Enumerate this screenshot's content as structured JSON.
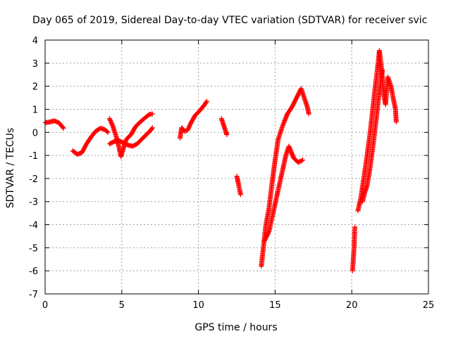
{
  "chart_data": {
    "type": "scatter",
    "title": "Day 065 of 2019, Sidereal Day-to-day VTEC variation (SDTVAR) for receiver svic",
    "xlabel": "GPS time / hours",
    "ylabel": "SDTVAR / TECUs",
    "xlim": [
      0,
      25
    ],
    "ylim": [
      -7,
      4
    ],
    "xticks": [
      0,
      5,
      10,
      15,
      20,
      25
    ],
    "yticks": [
      4,
      3,
      2,
      1,
      0,
      -1,
      -2,
      -3,
      -4,
      -5,
      -6,
      -7
    ],
    "grid": true,
    "marker": "+",
    "color": "#ff0000",
    "series": [
      {
        "name": "SDTVAR",
        "segments": [
          [
            [
              0.0,
              0.42
            ],
            [
              0.3,
              0.45
            ],
            [
              0.6,
              0.5
            ],
            [
              0.9,
              0.42
            ],
            [
              1.2,
              0.18
            ]
          ],
          [
            [
              1.8,
              -0.8
            ],
            [
              2.1,
              -0.95
            ],
            [
              2.4,
              -0.88
            ],
            [
              2.7,
              -0.5
            ],
            [
              3.0,
              -0.2
            ],
            [
              3.3,
              0.05
            ],
            [
              3.6,
              0.18
            ],
            [
              3.9,
              0.12
            ],
            [
              4.1,
              0.0
            ]
          ],
          [
            [
              4.2,
              0.6
            ],
            [
              4.4,
              0.3
            ],
            [
              4.6,
              -0.1
            ],
            [
              4.8,
              -0.6
            ],
            [
              4.95,
              -1.05
            ],
            [
              5.1,
              -0.7
            ],
            [
              5.3,
              -0.3
            ],
            [
              5.6,
              -0.1
            ],
            [
              5.9,
              0.25
            ],
            [
              6.2,
              0.45
            ],
            [
              6.5,
              0.62
            ],
            [
              6.8,
              0.78
            ],
            [
              7.0,
              0.8
            ]
          ],
          [
            [
              4.2,
              -0.5
            ],
            [
              4.5,
              -0.4
            ],
            [
              4.8,
              -0.35
            ],
            [
              5.1,
              -0.45
            ],
            [
              5.4,
              -0.55
            ],
            [
              5.7,
              -0.6
            ],
            [
              6.0,
              -0.5
            ],
            [
              6.3,
              -0.3
            ],
            [
              6.6,
              -0.1
            ],
            [
              6.9,
              0.1
            ],
            [
              7.0,
              0.2
            ]
          ],
          [
            [
              8.8,
              -0.25
            ],
            [
              8.9,
              0.2
            ],
            [
              9.1,
              0.05
            ],
            [
              9.3,
              0.1
            ],
            [
              9.5,
              0.4
            ],
            [
              9.8,
              0.75
            ],
            [
              10.1,
              0.95
            ],
            [
              10.4,
              1.2
            ],
            [
              10.55,
              1.35
            ]
          ],
          [
            [
              11.5,
              0.6
            ],
            [
              11.65,
              0.3
            ],
            [
              11.8,
              0.0
            ],
            [
              11.85,
              -0.1
            ]
          ],
          [
            [
              12.5,
              -1.9
            ],
            [
              12.6,
              -2.2
            ],
            [
              12.75,
              -2.7
            ]
          ],
          [
            [
              14.1,
              -5.8
            ],
            [
              14.2,
              -5.2
            ],
            [
              14.4,
              -4.0
            ],
            [
              14.6,
              -3.3
            ],
            [
              14.8,
              -2.2
            ],
            [
              15.0,
              -1.2
            ],
            [
              15.2,
              -0.3
            ],
            [
              15.5,
              0.3
            ],
            [
              15.8,
              0.8
            ],
            [
              16.1,
              1.1
            ],
            [
              16.4,
              1.5
            ],
            [
              16.7,
              1.9
            ],
            [
              16.9,
              1.5
            ],
            [
              17.1,
              1.1
            ],
            [
              17.2,
              0.8
            ]
          ],
          [
            [
              14.3,
              -4.7
            ],
            [
              14.6,
              -4.3
            ],
            [
              14.9,
              -3.4
            ],
            [
              15.1,
              -2.8
            ],
            [
              15.3,
              -2.2
            ],
            [
              15.5,
              -1.6
            ],
            [
              15.7,
              -1.0
            ],
            [
              15.9,
              -0.6
            ],
            [
              16.2,
              -1.1
            ],
            [
              16.5,
              -1.3
            ],
            [
              16.8,
              -1.2
            ]
          ],
          [
            [
              20.05,
              -6.0
            ],
            [
              20.15,
              -5.0
            ],
            [
              20.2,
              -4.1
            ]
          ],
          [
            [
              20.4,
              -3.4
            ],
            [
              20.6,
              -2.8
            ],
            [
              20.8,
              -1.9
            ],
            [
              21.0,
              -1.0
            ],
            [
              21.2,
              0.0
            ],
            [
              21.35,
              0.9
            ],
            [
              21.5,
              1.8
            ],
            [
              21.65,
              2.6
            ],
            [
              21.75,
              3.2
            ],
            [
              21.8,
              3.55
            ],
            [
              21.9,
              3.0
            ],
            [
              22.0,
              2.3
            ],
            [
              22.1,
              1.6
            ],
            [
              22.2,
              1.2
            ],
            [
              22.35,
              2.4
            ],
            [
              22.55,
              2.0
            ],
            [
              22.7,
              1.5
            ],
            [
              22.85,
              1.0
            ],
            [
              22.9,
              0.45
            ]
          ],
          [
            [
              20.7,
              -3.0
            ],
            [
              20.85,
              -2.6
            ],
            [
              21.0,
              -2.3
            ],
            [
              21.2,
              -1.5
            ],
            [
              21.4,
              -0.5
            ],
            [
              21.6,
              0.6
            ],
            [
              21.75,
              1.5
            ],
            [
              21.9,
              2.3
            ],
            [
              22.0,
              2.7
            ]
          ]
        ]
      }
    ]
  }
}
